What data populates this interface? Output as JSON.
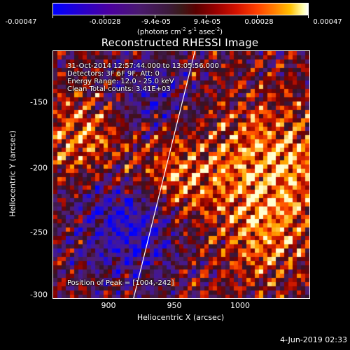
{
  "colorbar": {
    "labels": [
      "-0.00047",
      "-0.00028",
      "-9.4e-05",
      "9.4e-05",
      "0.00028",
      "0.00047"
    ],
    "unit_main": "(photons cm",
    "unit_sup1": "-2",
    "unit_mid": " s",
    "unit_sup2": "-1",
    "unit_end": " asec",
    "unit_sup3": "-2",
    "unit_close": ")"
  },
  "plot": {
    "title": "Reconstructed RHESSI Image",
    "info": [
      "31-Oct-2014 12:57:44.000 to 13:05:56.000",
      "Detectors: 3F 6F 9F, Att: 0",
      "Energy Range: 12.0 - 25.0 keV",
      "Clean     Total counts: 3.41E+03"
    ],
    "peak": "Position of Peak = [1004,-242]",
    "xlabel": "Heliocentric X (arcsec)",
    "ylabel": "Heliocentric Y (arcsec)",
    "xticks": [
      "900",
      "950",
      "1000"
    ],
    "yticks": [
      "-150",
      "-200",
      "-250",
      "-300"
    ]
  },
  "footer": {
    "timestamp": "4-Jun-2019 02:33"
  },
  "chart_data": {
    "type": "heatmap",
    "title": "Reconstructed RHESSI Image",
    "xlabel": "Heliocentric X (arcsec)",
    "ylabel": "Heliocentric Y (arcsec)",
    "xlim": [
      858,
      1046
    ],
    "ylim": [
      -302,
      -122
    ],
    "colorbar_range": [
      -0.00047,
      0.00047
    ],
    "peak_position": [
      1004,
      -242
    ],
    "limb_line": [
      [
        917,
        -302
      ],
      [
        962,
        -122
      ]
    ]
  }
}
